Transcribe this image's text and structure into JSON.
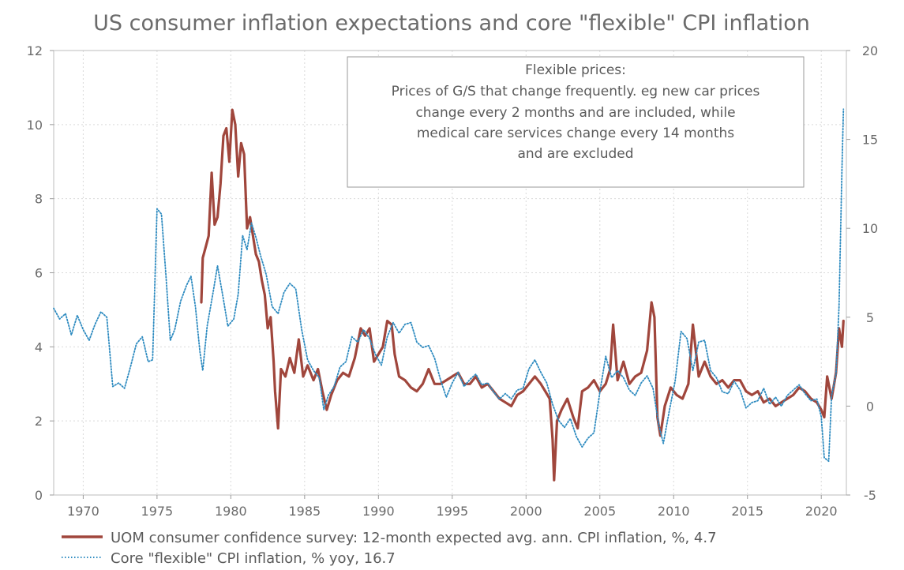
{
  "chart_data": {
    "type": "line",
    "title": "US consumer inflation expectations and core \"flexible\" CPI inflation",
    "x_ticks": [
      "1970",
      "1975",
      "1980",
      "1985",
      "1990",
      "1995",
      "2000",
      "2005",
      "2010",
      "2015",
      "2020"
    ],
    "xlim": [
      1968.0,
      2021.7
    ],
    "y_left": {
      "lim": [
        0,
        12
      ],
      "ticks": [
        "0",
        "2",
        "4",
        "6",
        "8",
        "10",
        "12"
      ]
    },
    "y_right": {
      "lim": [
        -5,
        20
      ],
      "ticks": [
        "-5",
        "0",
        "5",
        "10",
        "15",
        "20"
      ]
    },
    "grid": true,
    "legend_position": "bottom",
    "annotation": {
      "lines": [
        "Flexible prices:",
        "Prices of G/S that change frequently. eg new car prices",
        "change every 2 months and are included, while",
        "medical care services change every 14 months",
        "and are excluded"
      ]
    },
    "series": [
      {
        "name": "UOM consumer confidence survey: 12-month expected avg. ann. CPI inflation, %, 4.7",
        "axis": "left",
        "color": "#a0463c",
        "style": "solid",
        "points": [
          [
            1978.0,
            5.2
          ],
          [
            1978.1,
            6.4
          ],
          [
            1978.3,
            6.7
          ],
          [
            1978.5,
            7.0
          ],
          [
            1978.7,
            8.7
          ],
          [
            1978.9,
            7.3
          ],
          [
            1979.1,
            7.5
          ],
          [
            1979.3,
            8.4
          ],
          [
            1979.5,
            9.7
          ],
          [
            1979.7,
            9.9
          ],
          [
            1979.9,
            9.0
          ],
          [
            1980.1,
            10.4
          ],
          [
            1980.3,
            10.0
          ],
          [
            1980.5,
            8.6
          ],
          [
            1980.7,
            9.5
          ],
          [
            1980.9,
            9.2
          ],
          [
            1981.1,
            7.2
          ],
          [
            1981.3,
            7.5
          ],
          [
            1981.5,
            7.0
          ],
          [
            1981.7,
            6.5
          ],
          [
            1981.9,
            6.3
          ],
          [
            1982.1,
            5.8
          ],
          [
            1982.3,
            5.4
          ],
          [
            1982.5,
            4.5
          ],
          [
            1982.7,
            4.8
          ],
          [
            1982.9,
            3.6
          ],
          [
            1983.0,
            2.8
          ],
          [
            1983.2,
            1.8
          ],
          [
            1983.4,
            3.4
          ],
          [
            1983.7,
            3.2
          ],
          [
            1984.0,
            3.7
          ],
          [
            1984.3,
            3.3
          ],
          [
            1984.6,
            4.2
          ],
          [
            1984.9,
            3.2
          ],
          [
            1985.2,
            3.5
          ],
          [
            1985.6,
            3.1
          ],
          [
            1985.9,
            3.4
          ],
          [
            1986.2,
            2.8
          ],
          [
            1986.5,
            2.3
          ],
          [
            1986.8,
            2.7
          ],
          [
            1987.2,
            3.1
          ],
          [
            1987.6,
            3.3
          ],
          [
            1988.0,
            3.2
          ],
          [
            1988.4,
            3.7
          ],
          [
            1988.8,
            4.5
          ],
          [
            1989.1,
            4.3
          ],
          [
            1989.4,
            4.5
          ],
          [
            1989.7,
            3.6
          ],
          [
            1990.0,
            3.8
          ],
          [
            1990.3,
            4.0
          ],
          [
            1990.6,
            4.7
          ],
          [
            1990.9,
            4.6
          ],
          [
            1991.1,
            3.8
          ],
          [
            1991.4,
            3.2
          ],
          [
            1991.8,
            3.1
          ],
          [
            1992.2,
            2.9
          ],
          [
            1992.6,
            2.8
          ],
          [
            1993.0,
            3.0
          ],
          [
            1993.4,
            3.4
          ],
          [
            1993.8,
            3.0
          ],
          [
            1994.2,
            3.0
          ],
          [
            1994.6,
            3.1
          ],
          [
            1995.0,
            3.2
          ],
          [
            1995.4,
            3.3
          ],
          [
            1995.8,
            3.0
          ],
          [
            1996.2,
            3.0
          ],
          [
            1996.6,
            3.2
          ],
          [
            1997.0,
            2.9
          ],
          [
            1997.4,
            3.0
          ],
          [
            1997.8,
            2.8
          ],
          [
            1998.2,
            2.6
          ],
          [
            1998.6,
            2.5
          ],
          [
            1999.0,
            2.4
          ],
          [
            1999.4,
            2.7
          ],
          [
            1999.8,
            2.8
          ],
          [
            2000.2,
            3.0
          ],
          [
            2000.6,
            3.2
          ],
          [
            2001.0,
            3.0
          ],
          [
            2001.3,
            2.8
          ],
          [
            2001.6,
            2.6
          ],
          [
            2001.8,
            1.5
          ],
          [
            2001.9,
            0.4
          ],
          [
            2002.1,
            2.0
          ],
          [
            2002.4,
            2.3
          ],
          [
            2002.8,
            2.6
          ],
          [
            2003.2,
            2.1
          ],
          [
            2003.5,
            1.8
          ],
          [
            2003.8,
            2.8
          ],
          [
            2004.2,
            2.9
          ],
          [
            2004.6,
            3.1
          ],
          [
            2005.0,
            2.8
          ],
          [
            2005.4,
            3.0
          ],
          [
            2005.7,
            3.4
          ],
          [
            2005.9,
            4.6
          ],
          [
            2006.2,
            3.1
          ],
          [
            2006.6,
            3.6
          ],
          [
            2007.0,
            3.0
          ],
          [
            2007.4,
            3.2
          ],
          [
            2007.8,
            3.3
          ],
          [
            2008.2,
            3.9
          ],
          [
            2008.5,
            5.2
          ],
          [
            2008.7,
            4.8
          ],
          [
            2008.9,
            2.1
          ],
          [
            2009.1,
            1.6
          ],
          [
            2009.4,
            2.4
          ],
          [
            2009.8,
            2.9
          ],
          [
            2010.2,
            2.7
          ],
          [
            2010.6,
            2.6
          ],
          [
            2011.0,
            3.0
          ],
          [
            2011.3,
            4.6
          ],
          [
            2011.7,
            3.2
          ],
          [
            2012.1,
            3.6
          ],
          [
            2012.5,
            3.2
          ],
          [
            2012.9,
            3.0
          ],
          [
            2013.3,
            3.1
          ],
          [
            2013.7,
            2.9
          ],
          [
            2014.1,
            3.1
          ],
          [
            2014.5,
            3.1
          ],
          [
            2014.9,
            2.8
          ],
          [
            2015.3,
            2.7
          ],
          [
            2015.7,
            2.8
          ],
          [
            2016.1,
            2.5
          ],
          [
            2016.5,
            2.6
          ],
          [
            2016.9,
            2.4
          ],
          [
            2017.3,
            2.5
          ],
          [
            2017.7,
            2.6
          ],
          [
            2018.1,
            2.7
          ],
          [
            2018.5,
            2.9
          ],
          [
            2018.9,
            2.8
          ],
          [
            2019.3,
            2.6
          ],
          [
            2019.7,
            2.5
          ],
          [
            2020.0,
            2.3
          ],
          [
            2020.2,
            2.1
          ],
          [
            2020.4,
            3.2
          ],
          [
            2020.7,
            2.6
          ],
          [
            2021.0,
            3.3
          ],
          [
            2021.2,
            4.5
          ],
          [
            2021.4,
            4.0
          ],
          [
            2021.5,
            4.7
          ]
        ]
      },
      {
        "name": "Core \"flexible\" CPI inflation, % yoy, 16.7",
        "axis": "right",
        "color": "#2e8bc0",
        "style": "dotted",
        "points": [
          [
            1968.0,
            5.5
          ],
          [
            1968.4,
            4.9
          ],
          [
            1968.8,
            5.2
          ],
          [
            1969.2,
            4.0
          ],
          [
            1969.6,
            5.1
          ],
          [
            1970.0,
            4.3
          ],
          [
            1970.4,
            3.7
          ],
          [
            1970.8,
            4.6
          ],
          [
            1971.2,
            5.3
          ],
          [
            1971.6,
            5.0
          ],
          [
            1972.0,
            1.1
          ],
          [
            1972.4,
            1.3
          ],
          [
            1972.8,
            1.0
          ],
          [
            1973.2,
            2.2
          ],
          [
            1973.6,
            3.5
          ],
          [
            1974.0,
            3.9
          ],
          [
            1974.4,
            2.5
          ],
          [
            1974.7,
            2.6
          ],
          [
            1975.0,
            11.1
          ],
          [
            1975.3,
            10.8
          ],
          [
            1975.6,
            7.4
          ],
          [
            1975.9,
            3.7
          ],
          [
            1976.2,
            4.3
          ],
          [
            1976.6,
            5.9
          ],
          [
            1977.0,
            6.8
          ],
          [
            1977.3,
            7.3
          ],
          [
            1977.6,
            5.6
          ],
          [
            1977.9,
            3.1
          ],
          [
            1978.1,
            2.0
          ],
          [
            1978.4,
            4.5
          ],
          [
            1978.8,
            6.4
          ],
          [
            1979.1,
            7.9
          ],
          [
            1979.5,
            6.0
          ],
          [
            1979.8,
            4.5
          ],
          [
            1980.2,
            4.9
          ],
          [
            1980.5,
            6.3
          ],
          [
            1980.8,
            9.6
          ],
          [
            1981.1,
            8.8
          ],
          [
            1981.4,
            10.3
          ],
          [
            1981.7,
            9.5
          ],
          [
            1982.0,
            8.5
          ],
          [
            1982.4,
            7.4
          ],
          [
            1982.8,
            5.6
          ],
          [
            1983.2,
            5.2
          ],
          [
            1983.6,
            6.4
          ],
          [
            1984.0,
            6.9
          ],
          [
            1984.4,
            6.6
          ],
          [
            1984.8,
            4.3
          ],
          [
            1985.2,
            2.6
          ],
          [
            1985.6,
            2.0
          ],
          [
            1986.0,
            1.6
          ],
          [
            1986.3,
            -0.2
          ],
          [
            1986.6,
            0.6
          ],
          [
            1987.0,
            1.1
          ],
          [
            1987.4,
            2.2
          ],
          [
            1987.8,
            2.5
          ],
          [
            1988.2,
            3.9
          ],
          [
            1988.6,
            3.6
          ],
          [
            1989.0,
            4.3
          ],
          [
            1989.4,
            3.8
          ],
          [
            1989.8,
            2.9
          ],
          [
            1990.2,
            2.3
          ],
          [
            1990.6,
            3.9
          ],
          [
            1991.0,
            4.7
          ],
          [
            1991.4,
            4.1
          ],
          [
            1991.8,
            4.6
          ],
          [
            1992.2,
            4.7
          ],
          [
            1992.6,
            3.6
          ],
          [
            1993.0,
            3.3
          ],
          [
            1993.4,
            3.4
          ],
          [
            1993.8,
            2.7
          ],
          [
            1994.2,
            1.5
          ],
          [
            1994.6,
            0.5
          ],
          [
            1995.0,
            1.3
          ],
          [
            1995.4,
            1.9
          ],
          [
            1995.8,
            1.1
          ],
          [
            1996.2,
            1.5
          ],
          [
            1996.6,
            1.8
          ],
          [
            1997.0,
            1.2
          ],
          [
            1997.4,
            1.3
          ],
          [
            1997.8,
            0.8
          ],
          [
            1998.2,
            0.4
          ],
          [
            1998.6,
            0.7
          ],
          [
            1999.0,
            0.4
          ],
          [
            1999.4,
            0.9
          ],
          [
            1999.8,
            1.0
          ],
          [
            2000.2,
            2.1
          ],
          [
            2000.6,
            2.6
          ],
          [
            2001.0,
            1.9
          ],
          [
            2001.4,
            1.3
          ],
          [
            2001.8,
            0.1
          ],
          [
            2002.2,
            -0.8
          ],
          [
            2002.6,
            -1.2
          ],
          [
            2003.0,
            -0.7
          ],
          [
            2003.4,
            -1.7
          ],
          [
            2003.8,
            -2.3
          ],
          [
            2004.2,
            -1.8
          ],
          [
            2004.6,
            -1.5
          ],
          [
            2005.0,
            0.8
          ],
          [
            2005.4,
            2.8
          ],
          [
            2005.8,
            1.6
          ],
          [
            2006.2,
            2.0
          ],
          [
            2006.6,
            1.6
          ],
          [
            2007.0,
            0.9
          ],
          [
            2007.4,
            0.6
          ],
          [
            2007.8,
            1.3
          ],
          [
            2008.2,
            1.7
          ],
          [
            2008.6,
            1.0
          ],
          [
            2009.0,
            -1.1
          ],
          [
            2009.3,
            -2.1
          ],
          [
            2009.7,
            -0.3
          ],
          [
            2010.1,
            1.4
          ],
          [
            2010.5,
            4.2
          ],
          [
            2010.9,
            3.8
          ],
          [
            2011.3,
            2.0
          ],
          [
            2011.7,
            3.6
          ],
          [
            2012.1,
            3.7
          ],
          [
            2012.5,
            2.0
          ],
          [
            2012.9,
            1.6
          ],
          [
            2013.3,
            0.8
          ],
          [
            2013.7,
            0.7
          ],
          [
            2014.1,
            1.4
          ],
          [
            2014.5,
            0.9
          ],
          [
            2014.9,
            -0.1
          ],
          [
            2015.3,
            0.2
          ],
          [
            2015.7,
            0.3
          ],
          [
            2016.1,
            1.0
          ],
          [
            2016.5,
            0.1
          ],
          [
            2016.9,
            0.5
          ],
          [
            2017.3,
            0.0
          ],
          [
            2017.7,
            0.6
          ],
          [
            2018.1,
            0.9
          ],
          [
            2018.5,
            1.2
          ],
          [
            2018.9,
            0.7
          ],
          [
            2019.3,
            0.3
          ],
          [
            2019.7,
            0.4
          ],
          [
            2020.0,
            -0.6
          ],
          [
            2020.2,
            -2.9
          ],
          [
            2020.5,
            -3.1
          ],
          [
            2020.7,
            0.6
          ],
          [
            2021.0,
            1.8
          ],
          [
            2021.2,
            5.6
          ],
          [
            2021.4,
            13.3
          ],
          [
            2021.5,
            16.7
          ]
        ]
      }
    ]
  }
}
